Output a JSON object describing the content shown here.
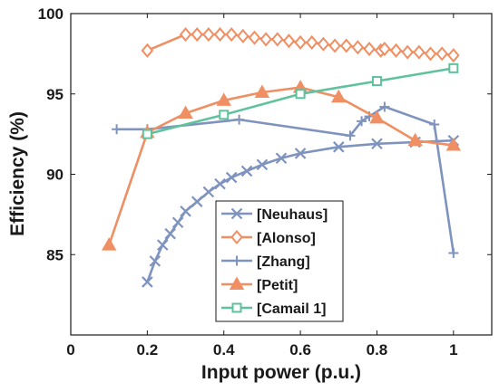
{
  "chart_data": {
    "type": "line",
    "xlabel": "Input power (p.u.)",
    "ylabel": "Efficiency (%)",
    "xlim": [
      0,
      1.1
    ],
    "ylim": [
      80,
      100
    ],
    "xticks": [
      0,
      0.2,
      0.4,
      0.6,
      0.8,
      1
    ],
    "xtick_labels": [
      "0",
      "0.2",
      "0.4",
      "0.6",
      "0.8",
      "1"
    ],
    "yticks": [
      85,
      90,
      95,
      100
    ],
    "ytick_labels": [
      "85",
      "90",
      "95",
      "100"
    ],
    "grid": false,
    "legend_position": "lower-center",
    "series": [
      {
        "name": "[Neuhaus]",
        "color": "#7f93bf",
        "marker": "x",
        "x": [
          0.2,
          0.22,
          0.24,
          0.26,
          0.28,
          0.3,
          0.33,
          0.36,
          0.39,
          0.42,
          0.46,
          0.5,
          0.55,
          0.6,
          0.7,
          0.8,
          0.9,
          1.0
        ],
        "y": [
          83.3,
          84.6,
          85.6,
          86.3,
          87.0,
          87.7,
          88.3,
          88.9,
          89.4,
          89.8,
          90.2,
          90.6,
          91.0,
          91.3,
          91.7,
          91.9,
          92.0,
          92.1
        ]
      },
      {
        "name": "[Alonso]",
        "color": "#ef8f63",
        "marker": "diamond",
        "x": [
          0.2,
          0.3,
          0.33,
          0.36,
          0.39,
          0.42,
          0.45,
          0.48,
          0.51,
          0.54,
          0.57,
          0.6,
          0.63,
          0.66,
          0.69,
          0.72,
          0.75,
          0.78,
          0.81,
          0.82,
          0.85,
          0.88,
          0.91,
          0.94,
          0.97,
          1.0
        ],
        "y": [
          97.7,
          98.7,
          98.7,
          98.7,
          98.7,
          98.7,
          98.6,
          98.5,
          98.4,
          98.4,
          98.3,
          98.2,
          98.2,
          98.1,
          98.0,
          98.0,
          97.9,
          97.8,
          97.7,
          97.8,
          97.7,
          97.6,
          97.6,
          97.5,
          97.5,
          97.4
        ]
      },
      {
        "name": "[Zhang]",
        "color": "#7f93bf",
        "marker": "plus",
        "x": [
          0.12,
          0.2,
          0.44,
          0.73,
          0.76,
          0.78,
          0.82,
          0.95,
          1.0
        ],
        "y": [
          92.8,
          92.8,
          93.4,
          92.4,
          93.3,
          93.6,
          94.2,
          93.1,
          85.1
        ]
      },
      {
        "name": "[Petit]",
        "color": "#ef8f63",
        "marker": "triangle",
        "x": [
          0.1,
          0.2,
          0.3,
          0.4,
          0.5,
          0.6,
          0.7,
          0.8,
          0.9,
          1.0
        ],
        "y": [
          85.6,
          92.6,
          93.8,
          94.6,
          95.1,
          95.4,
          94.8,
          93.5,
          92.1,
          91.8
        ]
      },
      {
        "name": "[Camail 1]",
        "color": "#5fc29d",
        "marker": "square",
        "x": [
          0.2,
          0.4,
          0.6,
          0.8,
          1.0
        ],
        "y": [
          92.5,
          93.7,
          95.0,
          95.8,
          96.6
        ]
      }
    ]
  }
}
